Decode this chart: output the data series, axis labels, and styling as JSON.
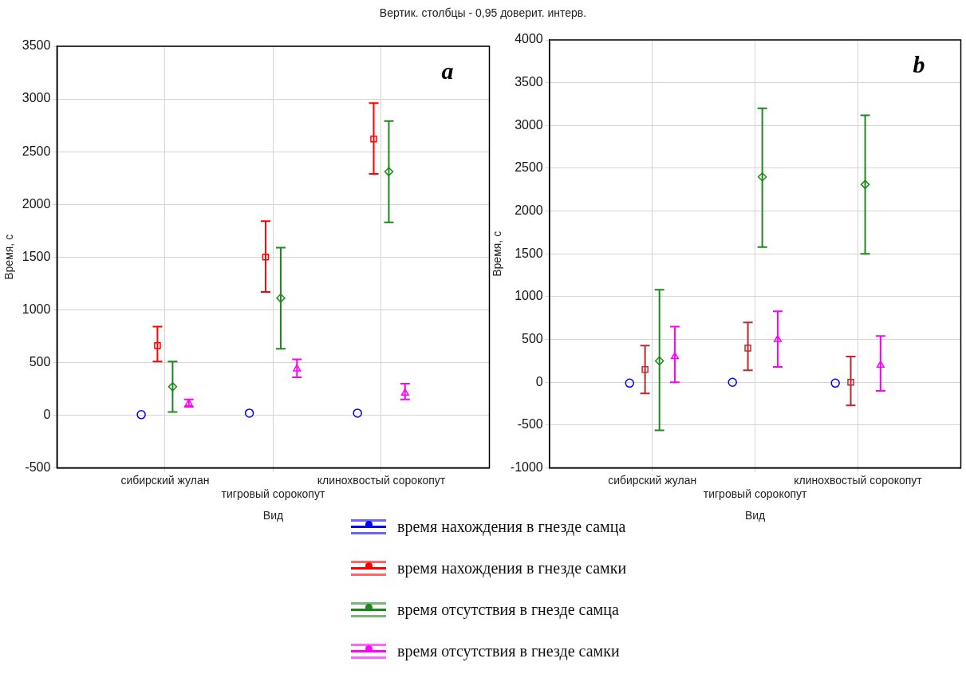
{
  "chart_data": [
    {
      "type": "scatter",
      "title": "Вертик. столбцы - 0,95 доверит. интерв.",
      "xlabel": "Вид",
      "ylabel": "Время, с",
      "annotations": [
        "a"
      ],
      "categories": [
        "сибирский жулан",
        "тигровый сорокопут",
        "клинохвостый сорокопут"
      ],
      "ylim": [
        -500,
        3500
      ],
      "yticks": [
        -500,
        0,
        500,
        1000,
        1500,
        2000,
        2500,
        3000,
        3500
      ],
      "grid": true,
      "legend": "bottom",
      "series": [
        {
          "name": "время нахождения в гнезде самца",
          "color": "#0000ff",
          "marker": "circle",
          "values": [
            5,
            20,
            20
          ]
        },
        {
          "name": "время нахождения в гнезде самки",
          "color": "#ff0000",
          "marker": "square",
          "values": [
            660,
            1500,
            2620
          ],
          "errors": [
            [
              510,
              840
            ],
            [
              1170,
              1840
            ],
            [
              2290,
              2960
            ]
          ]
        },
        {
          "name": "время отсутствия в гнезде самца",
          "color": "#1a8a1a",
          "marker": "diamond",
          "values": [
            270,
            1110,
            2310
          ],
          "errors": [
            [
              30,
              510
            ],
            [
              630,
              1590
            ],
            [
              1830,
              2790
            ]
          ]
        },
        {
          "name": "время отсутствия в гнезде самки",
          "color": "#ff00ff",
          "marker": "triangle",
          "values": [
            110,
            440,
            210
          ],
          "errors": [
            [
              80,
              150
            ],
            [
              360,
              530
            ],
            [
              150,
              300
            ]
          ]
        }
      ]
    },
    {
      "type": "scatter",
      "xlabel": "Вид",
      "ylabel": "Время, с",
      "annotations": [
        "b"
      ],
      "categories": [
        "сибирский жулан",
        "тигровый сорокопут",
        "клинохвостый сорокопут"
      ],
      "ylim": [
        -1000,
        4000
      ],
      "yticks": [
        -1000,
        -500,
        0,
        500,
        1000,
        1500,
        2000,
        2500,
        3000,
        3500,
        4000
      ],
      "grid": true,
      "series": [
        {
          "color": "#0000ff",
          "marker": "circle",
          "values": [
            -10,
            0,
            -10
          ]
        },
        {
          "color": "#c0282d",
          "marker": "square",
          "values": [
            150,
            400,
            0
          ],
          "errors": [
            [
              -130,
              430
            ],
            [
              140,
              700
            ],
            [
              -270,
              300
            ]
          ]
        },
        {
          "color": "#1a8a1a",
          "marker": "diamond",
          "values": [
            250,
            2400,
            2310
          ],
          "errors": [
            [
              -560,
              1080
            ],
            [
              1580,
              3200
            ],
            [
              1500,
              3120
            ]
          ]
        },
        {
          "color": "#ff00ff",
          "marker": "triangle",
          "values": [
            300,
            500,
            200
          ],
          "errors": [
            [
              0,
              650
            ],
            [
              180,
              830
            ],
            [
              -100,
              540
            ]
          ]
        }
      ]
    }
  ]
}
